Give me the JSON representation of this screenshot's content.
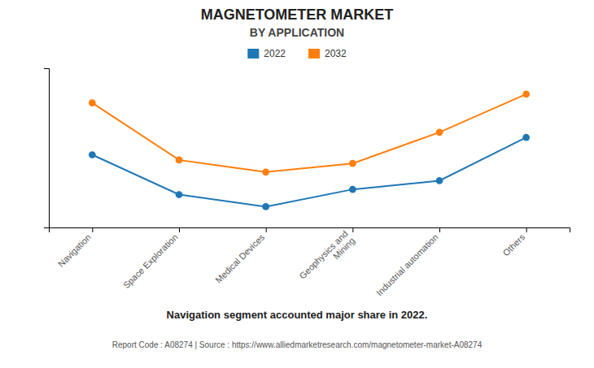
{
  "chart_data": {
    "type": "line",
    "title": "MAGNETOMETER MARKET",
    "subtitle": "BY APPLICATION",
    "categories": [
      "Navigation",
      "Space Exploration",
      "Medical Devices",
      "Geophysics and\nMining",
      "Industrial automation",
      "Others"
    ],
    "series": [
      {
        "name": "2022",
        "marker": "circle",
        "values": [
          6.5,
          4.2,
          3.5,
          4.5,
          5.0,
          7.5
        ]
      },
      {
        "name": "2032",
        "marker": "circle",
        "values": [
          9.5,
          6.2,
          5.5,
          6.0,
          7.8,
          10.0
        ]
      }
    ],
    "ylim": [
      2.3,
      11.5
    ],
    "yticks": [],
    "tick_labels": "x",
    "grid": false,
    "annotations": [
      "Navigation segment accounted major share in 2022.",
      "Report Code : A08274  |  Source : https://www.alliedmarketresearch.com/magnetometer-market-A08274"
    ]
  }
}
